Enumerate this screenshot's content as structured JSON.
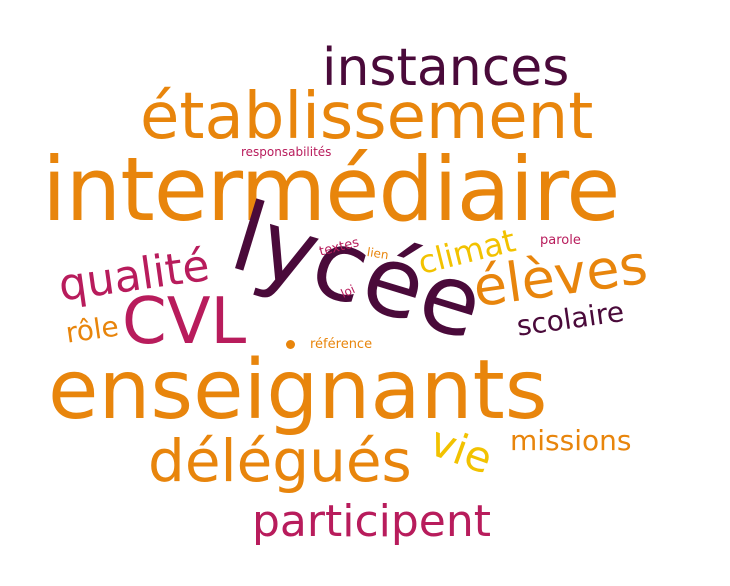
{
  "palette": {
    "orange": "#e8850c",
    "crimson": "#b81c5c",
    "plum": "#4a0a3a",
    "gold": "#f2c200"
  },
  "words": [
    {
      "name": "word-instances",
      "text": "instances",
      "color": "#4a0a3a"
    },
    {
      "name": "word-etablissement",
      "text": "établissement",
      "color": "#e8850c"
    },
    {
      "name": "word-responsabilites",
      "text": "responsabilités",
      "color": "#b81c5c"
    },
    {
      "name": "word-intermediaire",
      "text": "intermédiaire",
      "color": "#e8850c"
    },
    {
      "name": "word-lycee",
      "text": "lycée",
      "color": "#4a0a3a"
    },
    {
      "name": "word-qualite",
      "text": "qualité",
      "color": "#b81c5c"
    },
    {
      "name": "word-textes",
      "text": "textes",
      "color": "#b81c5c"
    },
    {
      "name": "word-lien",
      "text": "lien",
      "color": "#e8850c"
    },
    {
      "name": "word-climat",
      "text": "climat",
      "color": "#f2c200"
    },
    {
      "name": "word-parole",
      "text": "parole",
      "color": "#b81c5c"
    },
    {
      "name": "word-eleves",
      "text": "élèves",
      "color": "#e8850c"
    },
    {
      "name": "word-loi",
      "text": "loi",
      "color": "#b81c5c"
    },
    {
      "name": "word-cvl",
      "text": "CVL",
      "color": "#b81c5c"
    },
    {
      "name": "word-role",
      "text": "rôle",
      "color": "#e8850c"
    },
    {
      "name": "word-scolaire",
      "text": "scolaire",
      "color": "#4a0a3a"
    },
    {
      "name": "word-reference",
      "text": "référence",
      "color": "#e8850c"
    },
    {
      "name": "word-enseignants",
      "text": "enseignants",
      "color": "#e8850c"
    },
    {
      "name": "word-vie",
      "text": "vie",
      "color": "#f2c200"
    },
    {
      "name": "word-missions",
      "text": "missions",
      "color": "#e8850c"
    },
    {
      "name": "word-delegues",
      "text": "délégués",
      "color": "#e8850c"
    },
    {
      "name": "word-participent",
      "text": "participent",
      "color": "#b81c5c"
    }
  ]
}
